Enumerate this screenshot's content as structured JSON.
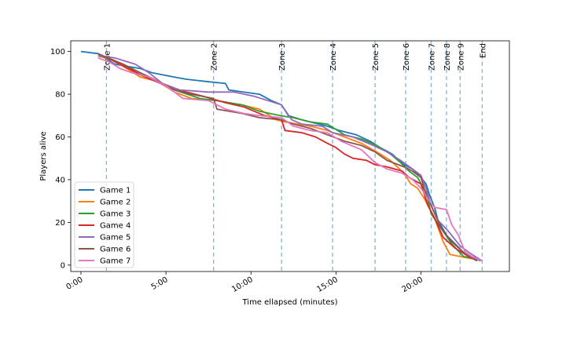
{
  "chart_data": {
    "type": "line",
    "xlabel": "Time ellapsed (minutes)",
    "ylabel": "Players alive",
    "xlim": [
      -0.6,
      25.2
    ],
    "ylim": [
      -3,
      105
    ],
    "x_ticks": [
      {
        "value": 0,
        "label": "0:00"
      },
      {
        "value": 5,
        "label": "5:00"
      },
      {
        "value": 10,
        "label": "10:00"
      },
      {
        "value": 15,
        "label": "15:00"
      },
      {
        "value": 20,
        "label": "20:00"
      }
    ],
    "y_ticks": [
      0,
      20,
      40,
      60,
      80,
      100
    ],
    "legend_position": "lower-left",
    "zones": [
      {
        "label": "Zone 1",
        "x": 1.5
      },
      {
        "label": "Zone 2",
        "x": 7.8
      },
      {
        "label": "Zone 3",
        "x": 11.8
      },
      {
        "label": "Zone 4",
        "x": 14.8
      },
      {
        "label": "Zone 5",
        "x": 17.3
      },
      {
        "label": "Zone 6",
        "x": 19.1
      },
      {
        "label": "Zone 7",
        "x": 20.6
      },
      {
        "label": "Zone 8",
        "x": 21.5
      },
      {
        "label": "Zone 9",
        "x": 22.3
      },
      {
        "label": "End",
        "x": 23.6
      }
    ],
    "series": [
      {
        "name": "Game 1",
        "color": "#1f77b4",
        "points": [
          [
            0,
            100
          ],
          [
            1.0,
            99
          ],
          [
            2.0,
            94
          ],
          [
            3.5,
            92
          ],
          [
            4.2,
            90
          ],
          [
            5.5,
            88
          ],
          [
            6.2,
            87
          ],
          [
            7.3,
            86
          ],
          [
            8.5,
            85
          ],
          [
            8.7,
            82
          ],
          [
            10.5,
            80
          ],
          [
            11.2,
            77
          ],
          [
            11.8,
            75
          ],
          [
            12.2,
            70
          ],
          [
            13.0,
            68
          ],
          [
            14.5,
            65
          ],
          [
            15.2,
            63
          ],
          [
            16.2,
            61
          ],
          [
            17.0,
            58
          ],
          [
            17.6,
            55
          ],
          [
            18.3,
            52
          ],
          [
            19.0,
            47
          ],
          [
            19.5,
            45
          ],
          [
            20.0,
            41
          ],
          [
            20.3,
            38
          ],
          [
            20.5,
            33
          ],
          [
            20.8,
            27
          ],
          [
            21.0,
            21
          ],
          [
            21.5,
            14
          ],
          [
            22.0,
            10
          ],
          [
            22.5,
            6
          ],
          [
            23.0,
            4
          ],
          [
            23.5,
            2
          ]
        ]
      },
      {
        "name": "Game 2",
        "color": "#ff7f0e",
        "points": [
          [
            1.0,
            98
          ],
          [
            1.8,
            96
          ],
          [
            2.5,
            93
          ],
          [
            3.5,
            88
          ],
          [
            4.5,
            86
          ],
          [
            5.5,
            81
          ],
          [
            6.5,
            78
          ],
          [
            8.0,
            77
          ],
          [
            9.5,
            75
          ],
          [
            10.5,
            73
          ],
          [
            11.5,
            68
          ],
          [
            12.0,
            67
          ],
          [
            13.5,
            65
          ],
          [
            14.5,
            63
          ],
          [
            15.5,
            60
          ],
          [
            16.5,
            57
          ],
          [
            17.4,
            53
          ],
          [
            18.2,
            49
          ],
          [
            19.0,
            43
          ],
          [
            19.4,
            38
          ],
          [
            19.8,
            36
          ],
          [
            20.2,
            31
          ],
          [
            20.8,
            22
          ],
          [
            21.3,
            11
          ],
          [
            21.7,
            5
          ],
          [
            22.3,
            4
          ],
          [
            23.0,
            3
          ]
        ]
      },
      {
        "name": "Game 3",
        "color": "#2ca02c",
        "points": [
          [
            1.0,
            98
          ],
          [
            1.6,
            97
          ],
          [
            2.5,
            94
          ],
          [
            3.5,
            89
          ],
          [
            4.5,
            86
          ],
          [
            5.5,
            82
          ],
          [
            7.0,
            78
          ],
          [
            8.0,
            77
          ],
          [
            9.5,
            75
          ],
          [
            10.5,
            72
          ],
          [
            11.7,
            70
          ],
          [
            12.5,
            69
          ],
          [
            13.5,
            67
          ],
          [
            14.5,
            66
          ],
          [
            15.5,
            61
          ],
          [
            16.5,
            59
          ],
          [
            17.4,
            56
          ],
          [
            18.2,
            52
          ],
          [
            18.8,
            48
          ],
          [
            19.3,
            44
          ],
          [
            19.8,
            41
          ],
          [
            20.3,
            34
          ],
          [
            20.6,
            24
          ],
          [
            21.2,
            17
          ],
          [
            21.8,
            10
          ],
          [
            22.5,
            4
          ],
          [
            23.2,
            3
          ]
        ]
      },
      {
        "name": "Game 4",
        "color": "#d62728",
        "points": [
          [
            1.0,
            99
          ],
          [
            1.8,
            96
          ],
          [
            2.8,
            92
          ],
          [
            3.8,
            88
          ],
          [
            5.0,
            84
          ],
          [
            6.2,
            81
          ],
          [
            7.2,
            79
          ],
          [
            8.5,
            76
          ],
          [
            9.6,
            74
          ],
          [
            10.8,
            70
          ],
          [
            11.8,
            68
          ],
          [
            12.0,
            63
          ],
          [
            13.0,
            62
          ],
          [
            13.8,
            60
          ],
          [
            14.5,
            57
          ],
          [
            15.0,
            55
          ],
          [
            15.5,
            52
          ],
          [
            16.0,
            50
          ],
          [
            16.8,
            49
          ],
          [
            17.3,
            47
          ],
          [
            18.0,
            46
          ],
          [
            18.9,
            44
          ],
          [
            19.3,
            41
          ],
          [
            20.0,
            38
          ],
          [
            20.4,
            28
          ],
          [
            20.8,
            22
          ],
          [
            21.3,
            13
          ],
          [
            22.0,
            8
          ],
          [
            22.8,
            4
          ],
          [
            23.3,
            2
          ]
        ]
      },
      {
        "name": "Game 5",
        "color": "#9467bd",
        "points": [
          [
            1.0,
            98
          ],
          [
            2.0,
            97
          ],
          [
            3.2,
            94
          ],
          [
            4.0,
            90
          ],
          [
            4.8,
            85
          ],
          [
            5.8,
            82
          ],
          [
            7.5,
            81
          ],
          [
            9.0,
            81
          ],
          [
            10.2,
            79
          ],
          [
            11.0,
            77
          ],
          [
            11.8,
            75
          ],
          [
            12.4,
            68
          ],
          [
            13.0,
            66
          ],
          [
            14.2,
            65
          ],
          [
            14.8,
            62
          ],
          [
            16.0,
            60
          ],
          [
            17.2,
            56
          ],
          [
            18.0,
            53
          ],
          [
            18.8,
            49
          ],
          [
            19.5,
            45
          ],
          [
            20.0,
            42
          ],
          [
            20.3,
            36
          ],
          [
            20.6,
            28
          ],
          [
            21.0,
            21
          ],
          [
            21.6,
            16
          ],
          [
            22.3,
            9
          ],
          [
            22.8,
            6
          ],
          [
            23.6,
            2
          ]
        ]
      },
      {
        "name": "Game 6",
        "color": "#8c564b",
        "points": [
          [
            1.0,
            99
          ],
          [
            1.6,
            97
          ],
          [
            2.5,
            94
          ],
          [
            3.5,
            90
          ],
          [
            4.3,
            87
          ],
          [
            5.5,
            82
          ],
          [
            6.5,
            80
          ],
          [
            7.8,
            78
          ],
          [
            8.0,
            73
          ],
          [
            9.5,
            71
          ],
          [
            10.5,
            69
          ],
          [
            11.8,
            68
          ],
          [
            12.5,
            66
          ],
          [
            13.5,
            64
          ],
          [
            14.5,
            61
          ],
          [
            15.5,
            58
          ],
          [
            16.5,
            56
          ],
          [
            17.3,
            53
          ],
          [
            18.0,
            49
          ],
          [
            19.0,
            46
          ],
          [
            19.5,
            44
          ],
          [
            20.0,
            41
          ],
          [
            20.3,
            33
          ],
          [
            20.7,
            26
          ],
          [
            21.2,
            17
          ],
          [
            21.8,
            11
          ],
          [
            22.5,
            6
          ],
          [
            23.3,
            2
          ]
        ]
      },
      {
        "name": "Game 7",
        "color": "#e377c2",
        "points": [
          [
            1.0,
            97
          ],
          [
            1.7,
            95
          ],
          [
            2.3,
            92
          ],
          [
            3.0,
            90
          ],
          [
            4.0,
            88
          ],
          [
            5.0,
            84
          ],
          [
            6.0,
            78
          ],
          [
            7.5,
            77
          ],
          [
            8.5,
            73
          ],
          [
            9.6,
            71
          ],
          [
            10.5,
            70
          ],
          [
            11.8,
            69
          ],
          [
            12.5,
            65
          ],
          [
            13.5,
            63
          ],
          [
            14.5,
            62
          ],
          [
            15.3,
            58
          ],
          [
            16.5,
            54
          ],
          [
            17.3,
            48
          ],
          [
            18.0,
            45
          ],
          [
            18.9,
            43
          ],
          [
            19.5,
            40
          ],
          [
            20.0,
            36
          ],
          [
            20.4,
            31
          ],
          [
            20.8,
            27
          ],
          [
            21.5,
            26
          ],
          [
            21.8,
            19
          ],
          [
            22.2,
            14
          ],
          [
            22.6,
            6
          ],
          [
            23.0,
            4
          ],
          [
            23.6,
            2
          ]
        ]
      }
    ]
  }
}
